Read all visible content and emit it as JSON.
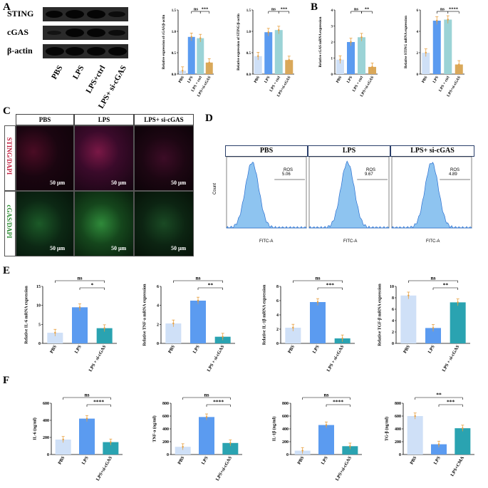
{
  "panels": {
    "A": "A",
    "B": "B",
    "C": "C",
    "D": "D",
    "E": "E",
    "F": "F"
  },
  "western_blot": {
    "rows": [
      "STING",
      "cGAS",
      "β-actin"
    ],
    "lanes": [
      "PBS",
      "LPS",
      "LPS+ctrl",
      "LPS+ si-cGAS"
    ]
  },
  "microscopy": {
    "columns": [
      "PBS",
      "LPS",
      "LPS+ si-cGAS"
    ],
    "rows": [
      "STING/DAPI",
      "cGAS/DAPI"
    ],
    "scale_bar": "50 μm"
  },
  "flow": {
    "columns": [
      "PBS",
      "LPS",
      "LPS+ si-cGAS"
    ],
    "gate_label": "ROS",
    "ros_values": [
      "5.06",
      "9.67",
      "4.89"
    ],
    "ylabel": "Count",
    "xlabel": "FITC-A"
  },
  "chart_data": [
    {
      "id": "A1",
      "type": "bar",
      "categories": [
        "PBS",
        "LPS",
        "LPS + ctrl",
        "LPS+si-cGAS"
      ],
      "values": [
        0.08,
        0.87,
        0.84,
        0.27
      ],
      "ylabel": "Relative expression of cGAS/β-actin",
      "ylim": [
        0,
        1.5
      ],
      "ticks": [
        "0.0",
        "0.5",
        "1.0",
        "1.5"
      ],
      "sig": [
        {
          "label": "ns",
          "from": 1,
          "to": 2
        },
        {
          "label": "***",
          "from": 2,
          "to": 3
        }
      ],
      "colors": [
        "#cfe0f7",
        "#5b9bf0",
        "#9bd3d6",
        "#d9a85a"
      ]
    },
    {
      "id": "A2",
      "type": "bar",
      "categories": [
        "PBS",
        "LPS",
        "LPS + ctrl",
        "LPS+si-cGAS"
      ],
      "values": [
        0.42,
        0.98,
        1.03,
        0.33
      ],
      "ylabel": "Relative expression of STING/β-actin",
      "ylim": [
        0,
        1.5
      ],
      "ticks": [
        "0.0",
        "0.5",
        "1.0",
        "1.5"
      ],
      "sig": [
        {
          "label": "ns",
          "from": 1,
          "to": 2
        },
        {
          "label": "***",
          "from": 2,
          "to": 3
        }
      ],
      "colors": [
        "#cfe0f7",
        "#5b9bf0",
        "#9bd3d6",
        "#d9a85a"
      ]
    },
    {
      "id": "B1",
      "type": "bar",
      "categories": [
        "PBS",
        "LPS",
        "LPS + ctrl",
        "LPS+si-cGAS"
      ],
      "values": [
        0.9,
        2.0,
        2.3,
        0.45
      ],
      "ylabel": "Relative cGAS mRNA expression",
      "ylim": [
        0,
        4
      ],
      "ticks": [
        "0",
        "1",
        "2",
        "3",
        "4"
      ],
      "sig": [
        {
          "label": "ns",
          "from": 1,
          "to": 2
        },
        {
          "label": "**",
          "from": 2,
          "to": 3
        }
      ],
      "colors": [
        "#cfe0f7",
        "#5b9bf0",
        "#9bd3d6",
        "#d9a85a"
      ]
    },
    {
      "id": "B2",
      "type": "bar",
      "categories": [
        "PBS",
        "LPS",
        "LPS + ctrl",
        "LPS+si-cGAS"
      ],
      "values": [
        2.0,
        5.0,
        5.1,
        0.9
      ],
      "ylabel": "Relative STING mRNA expression",
      "ylim": [
        0,
        6
      ],
      "ticks": [
        "0",
        "2",
        "4",
        "6"
      ],
      "sig": [
        {
          "label": "ns",
          "from": 1,
          "to": 2
        },
        {
          "label": "****",
          "from": 2,
          "to": 3
        }
      ],
      "colors": [
        "#cfe0f7",
        "#5b9bf0",
        "#9bd3d6",
        "#d9a85a"
      ]
    },
    {
      "id": "E1",
      "type": "bar",
      "categories": [
        "PBS",
        "LPS",
        "LPS + si-cGAS"
      ],
      "values": [
        2.8,
        9.5,
        4.0
      ],
      "ylabel": "Relative IL-6 mRNA expression",
      "ylim": [
        0,
        15
      ],
      "ticks": [
        "0",
        "5",
        "10",
        "15"
      ],
      "sig": [
        {
          "label": "ns",
          "from": 0,
          "to": 2
        },
        {
          "label": "*",
          "from": 1,
          "to": 2
        }
      ],
      "colors": [
        "#cfe0f7",
        "#5b9bf0",
        "#2aa3b1"
      ]
    },
    {
      "id": "E2",
      "type": "bar",
      "categories": [
        "PBS",
        "LPS",
        "LPS + si-cGAS"
      ],
      "values": [
        2.1,
        4.5,
        0.7
      ],
      "ylabel": "Relative TNF-a mRNA expression",
      "ylim": [
        0,
        6
      ],
      "ticks": [
        "0",
        "2",
        "4",
        "6"
      ],
      "sig": [
        {
          "label": "ns",
          "from": 0,
          "to": 2
        },
        {
          "label": "**",
          "from": 1,
          "to": 2
        }
      ],
      "colors": [
        "#cfe0f7",
        "#5b9bf0",
        "#2aa3b1"
      ]
    },
    {
      "id": "E3",
      "type": "bar",
      "categories": [
        "PBS",
        "LPS",
        "LPS + si-cGAS"
      ],
      "values": [
        2.2,
        5.8,
        0.7
      ],
      "ylabel": "Relative IL-1β mRNA expression",
      "ylim": [
        0,
        8
      ],
      "ticks": [
        "0",
        "2",
        "4",
        "6",
        "8"
      ],
      "sig": [
        {
          "label": "ns",
          "from": 0,
          "to": 2
        },
        {
          "label": "***",
          "from": 1,
          "to": 2
        }
      ],
      "colors": [
        "#cfe0f7",
        "#5b9bf0",
        "#2aa3b1"
      ]
    },
    {
      "id": "E4",
      "type": "bar",
      "categories": [
        "PBS",
        "LPS",
        "LPS + si-cGAS"
      ],
      "values": [
        8.4,
        2.7,
        7.2
      ],
      "ylabel": "Relative TGF-β mRNA expression",
      "ylim": [
        0,
        10
      ],
      "ticks": [
        "0",
        "2",
        "4",
        "6",
        "8",
        "10"
      ],
      "sig": [
        {
          "label": "ns",
          "from": 0,
          "to": 2
        },
        {
          "label": "**",
          "from": 1,
          "to": 2
        }
      ],
      "colors": [
        "#cfe0f7",
        "#5b9bf0",
        "#2aa3b1"
      ]
    },
    {
      "id": "F1",
      "type": "bar",
      "categories": [
        "PBS",
        "LPS",
        "LPS+si-cGAS"
      ],
      "values": [
        175,
        420,
        145
      ],
      "ylabel": "IL-6 (ng/ml)",
      "ylim": [
        0,
        600
      ],
      "ticks": [
        "0",
        "200",
        "400",
        "600"
      ],
      "sig": [
        {
          "label": "ns",
          "from": 0,
          "to": 2
        },
        {
          "label": "****",
          "from": 1,
          "to": 2
        }
      ],
      "colors": [
        "#cfe0f7",
        "#5b9bf0",
        "#2aa3b1"
      ]
    },
    {
      "id": "F2",
      "type": "bar",
      "categories": [
        "PBS",
        "LPS",
        "LPS+si-cGAS"
      ],
      "values": [
        120,
        585,
        180
      ],
      "ylabel": "TNF-a (ng/ml)",
      "ylim": [
        0,
        800
      ],
      "ticks": [
        "0",
        "200",
        "400",
        "600",
        "800"
      ],
      "sig": [
        {
          "label": "ns",
          "from": 0,
          "to": 2
        },
        {
          "label": "****",
          "from": 1,
          "to": 2
        }
      ],
      "colors": [
        "#cfe0f7",
        "#5b9bf0",
        "#2aa3b1"
      ]
    },
    {
      "id": "F3",
      "type": "bar",
      "categories": [
        "PBS",
        "LPS",
        "LPS+si-cGAS"
      ],
      "values": [
        60,
        460,
        130
      ],
      "ylabel": "IL-1β (ng/ml)",
      "ylim": [
        0,
        800
      ],
      "ticks": [
        "0",
        "200",
        "400",
        "600",
        "800"
      ],
      "sig": [
        {
          "label": "ns",
          "from": 0,
          "to": 2
        },
        {
          "label": "****",
          "from": 1,
          "to": 2
        }
      ],
      "colors": [
        "#cfe0f7",
        "#5b9bf0",
        "#2aa3b1"
      ]
    },
    {
      "id": "F4",
      "type": "bar",
      "categories": [
        "PBS",
        "LPS",
        "LPS+CMA"
      ],
      "values": [
        600,
        160,
        410
      ],
      "ylabel": "TG-β (ng/ml)",
      "ylim": [
        0,
        800
      ],
      "ticks": [
        "0",
        "200",
        "400",
        "600",
        "800"
      ],
      "sig": [
        {
          "label": "**",
          "from": 0,
          "to": 2
        },
        {
          "label": "***",
          "from": 1,
          "to": 2
        }
      ],
      "colors": [
        "#cfe0f7",
        "#5b9bf0",
        "#2aa3b1"
      ]
    }
  ]
}
